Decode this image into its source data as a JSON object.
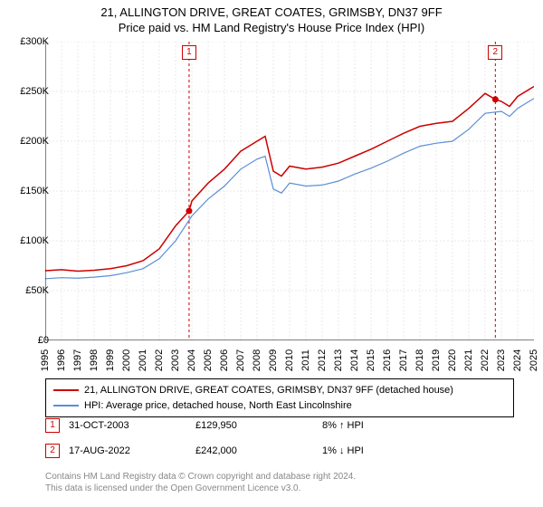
{
  "title_line1": "21, ALLINGTON DRIVE, GREAT COATES, GRIMSBY, DN37 9FF",
  "title_line2": "Price paid vs. HM Land Registry's House Price Index (HPI)",
  "chart": {
    "type": "line",
    "background_color": "#ffffff",
    "grid_color": "#d3d3d3",
    "y_axis": {
      "min": 0,
      "max": 300000,
      "ticks": [
        0,
        50000,
        100000,
        150000,
        200000,
        250000,
        300000
      ],
      "labels": [
        "£0",
        "£50K",
        "£100K",
        "£150K",
        "£200K",
        "£250K",
        "£300K"
      ]
    },
    "x_axis": {
      "min": 1995,
      "max": 2025,
      "ticks": [
        1995,
        1996,
        1997,
        1998,
        1999,
        2000,
        2001,
        2002,
        2003,
        2004,
        2005,
        2006,
        2007,
        2008,
        2009,
        2010,
        2011,
        2012,
        2013,
        2014,
        2015,
        2016,
        2017,
        2018,
        2019,
        2020,
        2021,
        2022,
        2023,
        2024,
        2025
      ]
    },
    "series": [
      {
        "name": "price_paid",
        "color": "#cc0000",
        "width": 1.5,
        "data": [
          [
            1995,
            70000
          ],
          [
            1996,
            71000
          ],
          [
            1997,
            69500
          ],
          [
            1998,
            70500
          ],
          [
            1999,
            72000
          ],
          [
            2000,
            75000
          ],
          [
            2001,
            80000
          ],
          [
            2002,
            92000
          ],
          [
            2003,
            115000
          ],
          [
            2003.83,
            129950
          ],
          [
            2004,
            140000
          ],
          [
            2005,
            158000
          ],
          [
            2006,
            172000
          ],
          [
            2007,
            190000
          ],
          [
            2008,
            200000
          ],
          [
            2008.5,
            205000
          ],
          [
            2009,
            170000
          ],
          [
            2009.5,
            165000
          ],
          [
            2010,
            175000
          ],
          [
            2011,
            172000
          ],
          [
            2012,
            174000
          ],
          [
            2013,
            178000
          ],
          [
            2014,
            185000
          ],
          [
            2015,
            192000
          ],
          [
            2016,
            200000
          ],
          [
            2017,
            208000
          ],
          [
            2018,
            215000
          ],
          [
            2019,
            218000
          ],
          [
            2020,
            220000
          ],
          [
            2021,
            233000
          ],
          [
            2022,
            248000
          ],
          [
            2022.63,
            242000
          ],
          [
            2023,
            240000
          ],
          [
            2023.5,
            235000
          ],
          [
            2024,
            245000
          ],
          [
            2025,
            255000
          ]
        ]
      },
      {
        "name": "hpi",
        "color": "#5b8fd6",
        "width": 1.2,
        "data": [
          [
            1995,
            62000
          ],
          [
            1996,
            63000
          ],
          [
            1997,
            62500
          ],
          [
            1998,
            63500
          ],
          [
            1999,
            65000
          ],
          [
            2000,
            68000
          ],
          [
            2001,
            72000
          ],
          [
            2002,
            82000
          ],
          [
            2003,
            100000
          ],
          [
            2004,
            125000
          ],
          [
            2005,
            142000
          ],
          [
            2006,
            155000
          ],
          [
            2007,
            172000
          ],
          [
            2008,
            182000
          ],
          [
            2008.5,
            185000
          ],
          [
            2009,
            152000
          ],
          [
            2009.5,
            148000
          ],
          [
            2010,
            158000
          ],
          [
            2011,
            155000
          ],
          [
            2012,
            156000
          ],
          [
            2013,
            160000
          ],
          [
            2014,
            167000
          ],
          [
            2015,
            173000
          ],
          [
            2016,
            180000
          ],
          [
            2017,
            188000
          ],
          [
            2018,
            195000
          ],
          [
            2019,
            198000
          ],
          [
            2020,
            200000
          ],
          [
            2021,
            212000
          ],
          [
            2022,
            228000
          ],
          [
            2023,
            230000
          ],
          [
            2023.5,
            225000
          ],
          [
            2024,
            233000
          ],
          [
            2025,
            243000
          ]
        ]
      }
    ],
    "markers": [
      {
        "id": "1",
        "x": 2003.83,
        "y": 129950,
        "color": "#cc0000"
      },
      {
        "id": "2",
        "x": 2022.63,
        "y": 242000,
        "color": "#cc0000"
      }
    ],
    "vlines": [
      {
        "x": 2003.83,
        "color": "#cc0000"
      },
      {
        "x": 2022.63,
        "color": "#cc0000"
      }
    ]
  },
  "legend": {
    "items": [
      {
        "color": "#cc0000",
        "label": "21, ALLINGTON DRIVE, GREAT COATES, GRIMSBY, DN37 9FF (detached house)"
      },
      {
        "color": "#5b8fd6",
        "label": "HPI: Average price, detached house, North East Lincolnshire"
      }
    ]
  },
  "transactions": [
    {
      "marker": "1",
      "color": "#cc0000",
      "date": "31-OCT-2003",
      "price": "£129,950",
      "delta": "8% ↑ HPI"
    },
    {
      "marker": "2",
      "color": "#cc0000",
      "date": "17-AUG-2022",
      "price": "£242,000",
      "delta": "1% ↓ HPI"
    }
  ],
  "footer_line1": "Contains HM Land Registry data © Crown copyright and database right 2024.",
  "footer_line2": "This data is licensed under the Open Government Licence v3.0."
}
